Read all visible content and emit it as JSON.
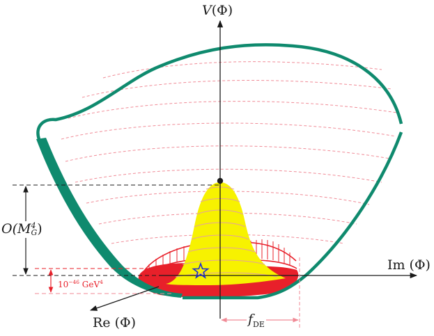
{
  "labels": {
    "v_axis_fn": "V",
    "v_axis_arg": "(Φ)",
    "im_axis": "Im (Φ)",
    "re_axis": "Re (Φ)",
    "height_O": "O(M",
    "height_sup": "4",
    "height_sub": "G",
    "height_close": ")",
    "energy_base": "10",
    "energy_exp": "−46",
    "energy_unit": " GeV",
    "energy_unit_exp": "4",
    "f_de_main": "f",
    "f_de_sub": "DE"
  },
  "colors": {
    "potential": "#0f8a6e",
    "contours": "#f08a96",
    "bump_fill": "#f7f200",
    "bump_lines": "#e3a0a0",
    "dark_energy": "#e8202a",
    "star": "#1a2bd6",
    "axes": "#1a1a1a"
  },
  "icons": {
    "minimum_marker": "star-icon",
    "peak_marker": "dot-icon"
  }
}
